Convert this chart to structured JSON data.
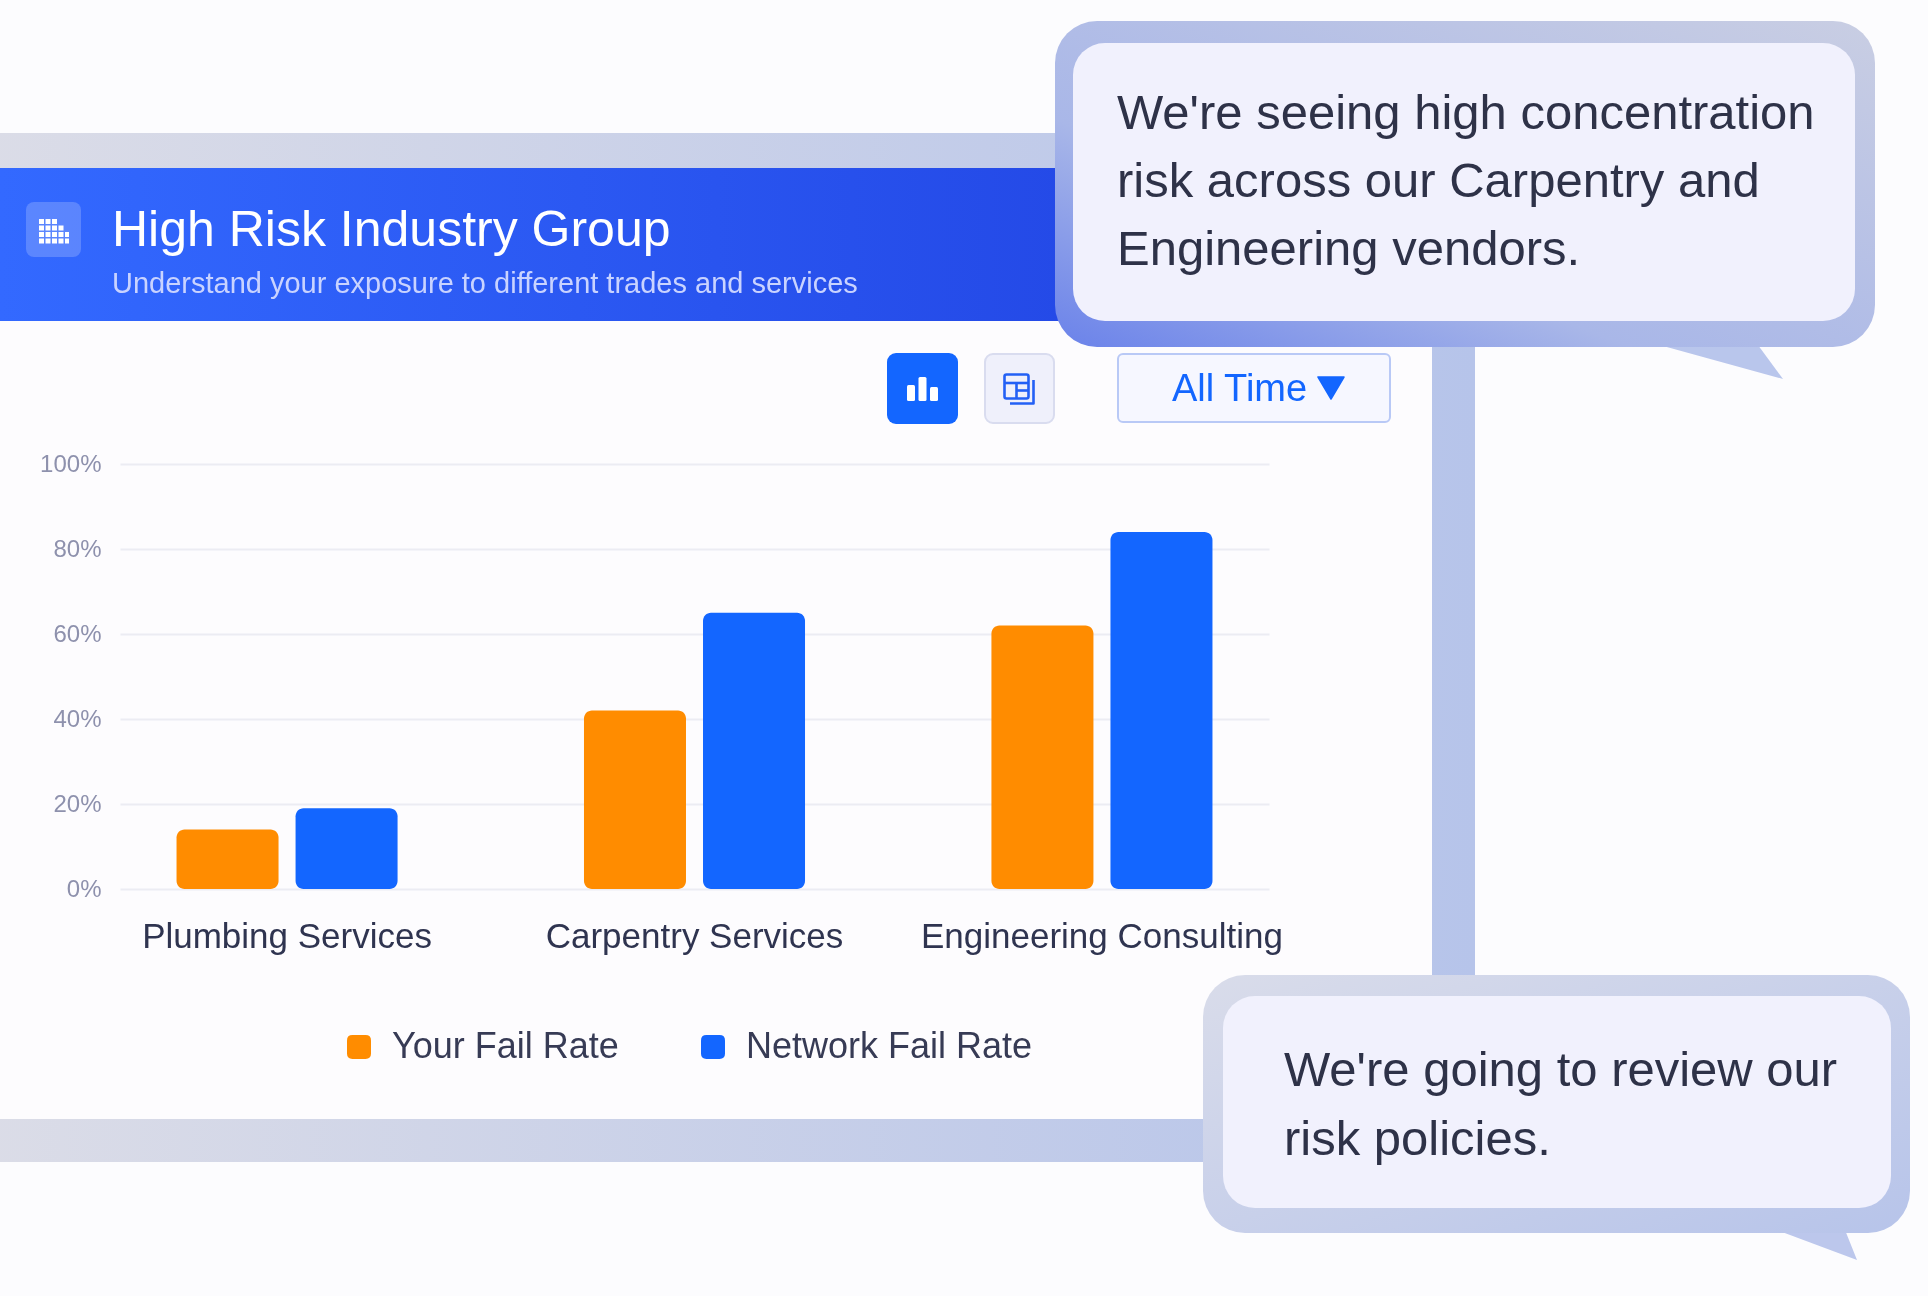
{
  "chart_data": {
    "type": "bar",
    "title": "High Risk Industry Group",
    "subtitle": "Understand your exposure to different trades and services",
    "categories": [
      "Plumbing Services",
      "Carpentry Services",
      "Engineering Consulting"
    ],
    "series": [
      {
        "name": "Your Fail Rate",
        "color": "#ff8c00",
        "values": [
          14,
          42,
          62
        ]
      },
      {
        "name": "Network Fail Rate",
        "color": "#1366ff",
        "values": [
          19,
          65,
          84
        ]
      }
    ],
    "ylim": [
      0,
      100
    ],
    "yticks": [
      {
        "value": 0,
        "label": "0%"
      },
      {
        "value": 20,
        "label": "20%"
      },
      {
        "value": 40,
        "label": "40%"
      },
      {
        "value": 60,
        "label": "60%"
      },
      {
        "value": 80,
        "label": "80%"
      },
      {
        "value": 100,
        "label": "100%"
      }
    ],
    "grid": "y",
    "legend": "bottom",
    "annotations": [
      "We're seeing high concentration risk across our Carpentry and Engineering vendors.",
      "All Time",
      "We're going to review our risk policies."
    ]
  }
}
